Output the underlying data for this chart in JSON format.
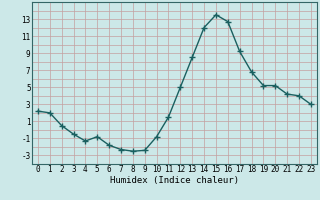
{
  "x": [
    0,
    1,
    2,
    3,
    4,
    5,
    6,
    7,
    8,
    9,
    10,
    11,
    12,
    13,
    14,
    15,
    16,
    17,
    18,
    19,
    20,
    21,
    22,
    23
  ],
  "y": [
    2.2,
    2.0,
    0.5,
    -0.5,
    -1.3,
    -0.8,
    -1.8,
    -2.3,
    -2.5,
    -2.4,
    -0.8,
    1.5,
    5.0,
    8.5,
    12.0,
    13.5,
    12.7,
    9.2,
    6.8,
    5.2,
    5.2,
    4.2,
    4.0,
    3.0
  ],
  "xlabel": "Humidex (Indice chaleur)",
  "xlim": [
    -0.5,
    23.5
  ],
  "ylim": [
    -4,
    15
  ],
  "yticks": [
    -3,
    -1,
    1,
    3,
    5,
    7,
    9,
    11,
    13
  ],
  "xticks": [
    0,
    1,
    2,
    3,
    4,
    5,
    6,
    7,
    8,
    9,
    10,
    11,
    12,
    13,
    14,
    15,
    16,
    17,
    18,
    19,
    20,
    21,
    22,
    23
  ],
  "plot_bg": "#cce8e8",
  "fig_bg": "#cce8e8",
  "grid_color": "#c4a0a0",
  "line_color": "#1a6060",
  "marker": "+",
  "marker_size": 4,
  "line_width": 1.0,
  "tick_fontsize": 5.5,
  "xlabel_fontsize": 6.5
}
